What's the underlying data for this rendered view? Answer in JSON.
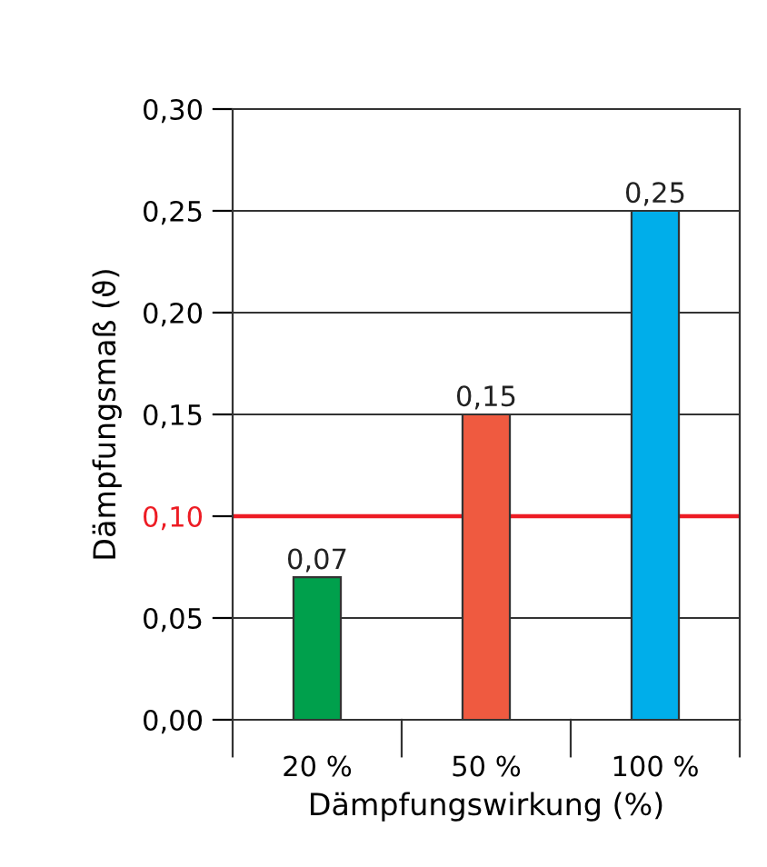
{
  "chart_data": {
    "type": "bar",
    "xlabel": "Dämpfungswirkung (%)",
    "ylabel": "Dämpfungsmaß (ϑ)",
    "categories": [
      "20 %",
      "50 %",
      "100 %"
    ],
    "values": [
      0.07,
      0.15,
      0.25
    ],
    "colors": [
      "#00a04c",
      "#ef5a40",
      "#00aeea"
    ],
    "ylim": [
      0,
      0.3
    ],
    "yticks": [
      {
        "value": 0,
        "label": "0,00"
      },
      {
        "value": 0.05,
        "label": "0,05"
      },
      {
        "value": 0.1,
        "label": "0,10"
      },
      {
        "value": 0.15,
        "label": "0,15"
      },
      {
        "value": 0.2,
        "label": "0,20"
      },
      {
        "value": 0.25,
        "label": "0,25"
      },
      {
        "value": 0.3,
        "label": "0,30"
      }
    ],
    "value_labels": [
      "0,07",
      "0,15",
      "0,25"
    ],
    "ref_lines": [
      {
        "axis": "y",
        "value": 0.1,
        "color": "#ed1c24"
      }
    ],
    "grid": "y",
    "legend": false
  }
}
